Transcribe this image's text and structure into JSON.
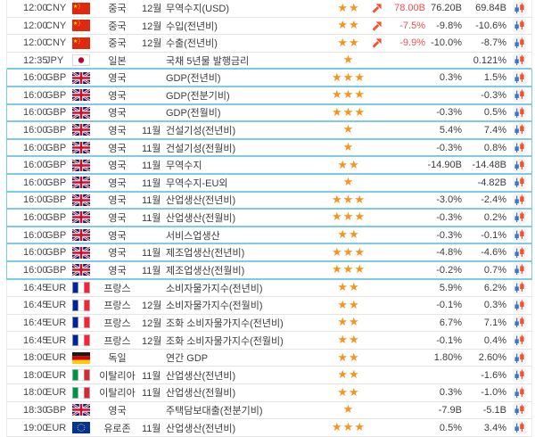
{
  "colors": {
    "star": "#f7941e",
    "trend_arrow": "#f4512c",
    "actual_highlight_red": "#ed5050",
    "value_text": "#3d3d3d",
    "highlight_border": "#7ecbe6",
    "row_separator": "#e4e4e4",
    "candle_blue": "#3a78c2",
    "candle_red": "#f4512c"
  },
  "icons": {
    "importance": "star-icon",
    "trend": "trend-up-arrow-icon",
    "chart": "candlestick-chart-icon"
  },
  "table": {
    "rows": [
      {
        "time": "12:00",
        "currency": "CNY",
        "flag": "china",
        "country": "중국",
        "month": "12월",
        "event": "무역수지(USD)",
        "stars": 2,
        "trend_up": true,
        "actual": "78.00B",
        "actual_color": "red",
        "forecast": "76.20B",
        "previous": "69.84B",
        "highlighted": false
      },
      {
        "time": "12:00",
        "currency": "CNY",
        "flag": "china",
        "country": "중국",
        "month": "12월",
        "event": "수입(전년비)",
        "stars": 2,
        "trend_up": true,
        "actual": "-7.5%",
        "actual_color": "red",
        "forecast": "-9.8%",
        "previous": "-10.6%",
        "highlighted": false
      },
      {
        "time": "12:00",
        "currency": "CNY",
        "flag": "china",
        "country": "중국",
        "month": "12월",
        "event": "수출(전년비)",
        "stars": 2,
        "trend_up": true,
        "actual": "-9.9%",
        "actual_color": "red",
        "forecast": "-10.0%",
        "previous": "-8.7%",
        "highlighted": false
      },
      {
        "time": "12:35",
        "currency": "JPY",
        "flag": "japan",
        "country": "일본",
        "month": "",
        "event": "국채 5년물 발행금리",
        "stars": 1,
        "trend_up": false,
        "actual": "",
        "actual_color": "",
        "forecast": "",
        "previous": "0.121%",
        "highlighted": false
      },
      {
        "time": "16:00",
        "currency": "GBP",
        "flag": "uk",
        "country": "영국",
        "month": "",
        "event": "GDP(전년비)",
        "stars": 3,
        "trend_up": false,
        "actual": "",
        "actual_color": "",
        "forecast": "0.3%",
        "previous": "1.5%",
        "highlighted": true
      },
      {
        "time": "16:00",
        "currency": "GBP",
        "flag": "uk",
        "country": "영국",
        "month": "",
        "event": "GDP(전분기비)",
        "stars": 3,
        "trend_up": false,
        "actual": "",
        "actual_color": "",
        "forecast": "",
        "previous": "-0.3%",
        "highlighted": true
      },
      {
        "time": "16:00",
        "currency": "GBP",
        "flag": "uk",
        "country": "영국",
        "month": "",
        "event": "GDP(전월비)",
        "stars": 3,
        "trend_up": false,
        "actual": "",
        "actual_color": "",
        "forecast": "-0.3%",
        "previous": "0.5%",
        "highlighted": true
      },
      {
        "time": "16:00",
        "currency": "GBP",
        "flag": "uk",
        "country": "영국",
        "month": "11월",
        "event": "건설기성(전년비)",
        "stars": 1,
        "trend_up": false,
        "actual": "",
        "actual_color": "",
        "forecast": "5.4%",
        "previous": "7.4%",
        "highlighted": true
      },
      {
        "time": "16:00",
        "currency": "GBP",
        "flag": "uk",
        "country": "영국",
        "month": "11월",
        "event": "건설기성(전월비)",
        "stars": 1,
        "trend_up": false,
        "actual": "",
        "actual_color": "",
        "forecast": "-0.3%",
        "previous": "0.8%",
        "highlighted": true
      },
      {
        "time": "16:00",
        "currency": "GBP",
        "flag": "uk",
        "country": "영국",
        "month": "11월",
        "event": "무역수지",
        "stars": 2,
        "trend_up": false,
        "actual": "",
        "actual_color": "",
        "forecast": "-14.90B",
        "previous": "-14.48B",
        "highlighted": true
      },
      {
        "time": "16:00",
        "currency": "GBP",
        "flag": "uk",
        "country": "영국",
        "month": "11월",
        "event": "무역수지-EU외",
        "stars": 1,
        "trend_up": false,
        "actual": "",
        "actual_color": "",
        "forecast": "",
        "previous": "-4.82B",
        "highlighted": true
      },
      {
        "time": "16:00",
        "currency": "GBP",
        "flag": "uk",
        "country": "영국",
        "month": "11월",
        "event": "산업생산(전년비)",
        "stars": 3,
        "trend_up": false,
        "actual": "",
        "actual_color": "",
        "forecast": "-3.0%",
        "previous": "-2.4%",
        "highlighted": true
      },
      {
        "time": "16:00",
        "currency": "GBP",
        "flag": "uk",
        "country": "영국",
        "month": "11월",
        "event": "산업생산(전월비)",
        "stars": 3,
        "trend_up": false,
        "actual": "",
        "actual_color": "",
        "forecast": "-0.3%",
        "previous": "0.2%",
        "highlighted": true
      },
      {
        "time": "16:00",
        "currency": "GBP",
        "flag": "uk",
        "country": "영국",
        "month": "",
        "event": "서비스업생산",
        "stars": 2,
        "trend_up": false,
        "actual": "",
        "actual_color": "",
        "forecast": "-0.3%",
        "previous": "-0.1%",
        "highlighted": true
      },
      {
        "time": "16:00",
        "currency": "GBP",
        "flag": "uk",
        "country": "영국",
        "month": "11월",
        "event": "제조업생산(전년비)",
        "stars": 3,
        "trend_up": false,
        "actual": "",
        "actual_color": "",
        "forecast": "-4.8%",
        "previous": "-4.6%",
        "highlighted": true
      },
      {
        "time": "16:00",
        "currency": "GBP",
        "flag": "uk",
        "country": "영국",
        "month": "11월",
        "event": "제조업생산(전월비)",
        "stars": 3,
        "trend_up": false,
        "actual": "",
        "actual_color": "",
        "forecast": "-0.2%",
        "previous": "0.7%",
        "highlighted": true
      },
      {
        "time": "16:45",
        "currency": "EUR",
        "flag": "france",
        "country": "프랑스",
        "month": "",
        "event": "소비자물가지수(전년비)",
        "stars": 2,
        "trend_up": false,
        "actual": "",
        "actual_color": "",
        "forecast": "5.9%",
        "previous": "6.2%",
        "highlighted": false
      },
      {
        "time": "16:45",
        "currency": "EUR",
        "flag": "france",
        "country": "프랑스",
        "month": "12월",
        "event": "소비자물가지수(전월비)",
        "stars": 2,
        "trend_up": false,
        "actual": "",
        "actual_color": "",
        "forecast": "-0.1%",
        "previous": "0.3%",
        "highlighted": false
      },
      {
        "time": "16:45",
        "currency": "EUR",
        "flag": "france",
        "country": "프랑스",
        "month": "12월",
        "event": "조화 소비자물가지수(전년비)",
        "stars": 2,
        "trend_up": false,
        "actual": "",
        "actual_color": "",
        "forecast": "6.7%",
        "previous": "7.1%",
        "highlighted": false
      },
      {
        "time": "16:45",
        "currency": "EUR",
        "flag": "france",
        "country": "프랑스",
        "month": "12월",
        "event": "조화 소비자물가지수(전월비)",
        "stars": 2,
        "trend_up": false,
        "actual": "",
        "actual_color": "",
        "forecast": "-0.1%",
        "previous": "0.4%",
        "highlighted": false
      },
      {
        "time": "18:00",
        "currency": "EUR",
        "flag": "germany",
        "country": "독일",
        "month": "",
        "event": "연간 GDP",
        "stars": 2,
        "trend_up": false,
        "actual": "",
        "actual_color": "",
        "forecast": "1.80%",
        "previous": "2.60%",
        "highlighted": false
      },
      {
        "time": "18:00",
        "currency": "EUR",
        "flag": "italy",
        "country": "이탈리아",
        "month": "11월",
        "event": "산업생산(전년비)",
        "stars": 2,
        "trend_up": false,
        "actual": "",
        "actual_color": "",
        "forecast": "",
        "previous": "-1.6%",
        "highlighted": false
      },
      {
        "time": "18:00",
        "currency": "EUR",
        "flag": "italy",
        "country": "이탈리아",
        "month": "11월",
        "event": "산업생산(전월비)",
        "stars": 2,
        "trend_up": false,
        "actual": "",
        "actual_color": "",
        "forecast": "0.3%",
        "previous": "-1.0%",
        "highlighted": false
      },
      {
        "time": "18:30",
        "currency": "GBP",
        "flag": "uk",
        "country": "영국",
        "month": "",
        "event": "주택담보대출(전분기비)",
        "stars": 1,
        "trend_up": false,
        "actual": "",
        "actual_color": "",
        "forecast": "-7.9B",
        "previous": "-5.1B",
        "highlighted": false
      },
      {
        "time": "19:00",
        "currency": "EUR",
        "flag": "eurozone",
        "country": "유로존",
        "month": "11월",
        "event": "산업생산(전년비)",
        "stars": 3,
        "trend_up": false,
        "actual": "",
        "actual_color": "",
        "forecast": "0.5%",
        "previous": "3.4%",
        "highlighted": false
      }
    ]
  }
}
